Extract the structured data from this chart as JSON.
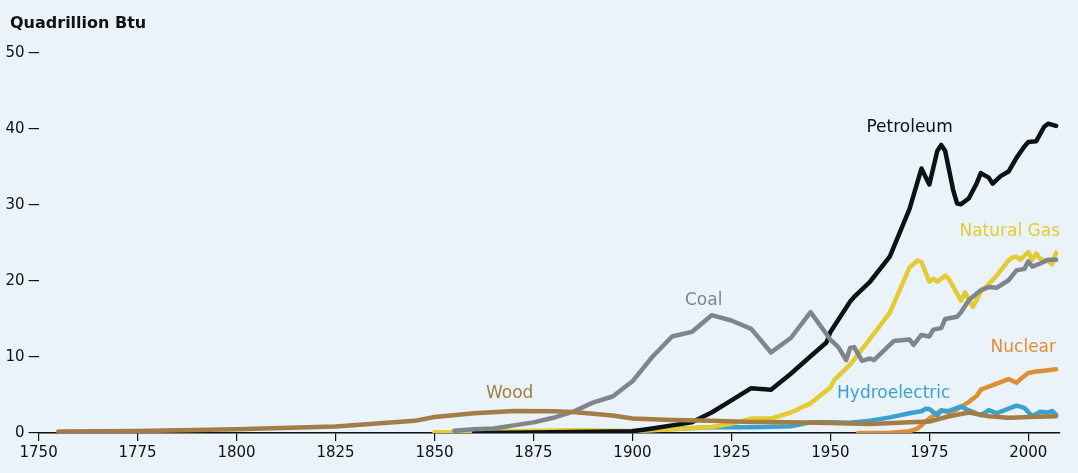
{
  "chart_data": {
    "type": "line",
    "ylabel": "Quadrillion Btu",
    "xlim": [
      1750,
      2008
    ],
    "xticks": [
      1750,
      1775,
      1800,
      1825,
      1850,
      1875,
      1900,
      1925,
      1950,
      1975,
      2000
    ],
    "ylim": [
      0,
      50
    ],
    "yticks": [
      0,
      10,
      20,
      30,
      40,
      50
    ],
    "grid": false,
    "legend": false,
    "marker": "none",
    "line_style": "solid",
    "series": [
      {
        "name": "Wood",
        "color": "#a47c45",
        "x": [
          1755,
          1775,
          1800,
          1825,
          1845,
          1850,
          1860,
          1870,
          1880,
          1885,
          1895,
          1900,
          1910,
          1920,
          1930,
          1940,
          1950,
          1960,
          1970,
          1975,
          1980,
          1985,
          1990,
          1995,
          2000,
          2007
        ],
        "values": [
          0.2,
          0.25,
          0.5,
          0.85,
          1.6,
          2.1,
          2.6,
          2.9,
          2.85,
          2.75,
          2.3,
          1.9,
          1.7,
          1.6,
          1.45,
          1.4,
          1.3,
          1.2,
          1.4,
          1.5,
          2.2,
          2.7,
          2.2,
          2.0,
          2.1,
          2.2
        ]
      },
      {
        "name": "Coal",
        "color": "#7f868b",
        "x": [
          1855,
          1860,
          1865,
          1870,
          1875,
          1880,
          1885,
          1890,
          1895,
          1900,
          1905,
          1910,
          1915,
          1920,
          1925,
          1930,
          1935,
          1940,
          1945,
          1950,
          1952,
          1954,
          1955,
          1956,
          1958,
          1960,
          1961,
          1965,
          1966,
          1970,
          1971,
          1973,
          1975,
          1976,
          1978,
          1979,
          1982,
          1983,
          1985,
          1988,
          1990,
          1992,
          1995,
          1997,
          1999,
          2000,
          2001,
          2003,
          2005,
          2007
        ],
        "values": [
          0.3,
          0.5,
          0.6,
          1.0,
          1.4,
          2.0,
          2.8,
          4.0,
          4.8,
          6.8,
          10.0,
          12.7,
          13.3,
          15.5,
          14.8,
          13.7,
          10.6,
          12.5,
          15.9,
          12.3,
          11.3,
          9.6,
          11.2,
          11.3,
          9.5,
          9.8,
          9.6,
          11.6,
          12.1,
          12.3,
          11.6,
          12.9,
          12.7,
          13.6,
          13.8,
          15.0,
          15.3,
          15.9,
          17.5,
          18.8,
          19.2,
          19.1,
          20.1,
          21.4,
          21.6,
          22.6,
          21.9,
          22.3,
          22.8,
          22.8
        ]
      },
      {
        "name": "Petroleum",
        "color": "#0d1214",
        "x": [
          1860,
          1880,
          1890,
          1900,
          1905,
          1910,
          1915,
          1920,
          1925,
          1930,
          1935,
          1940,
          1945,
          1949,
          1950,
          1952,
          1955,
          1956,
          1960,
          1965,
          1970,
          1973,
          1975,
          1977,
          1978,
          1979,
          1981,
          1982,
          1983,
          1985,
          1987,
          1988,
          1990,
          1991,
          1993,
          1995,
          1997,
          1999,
          2000,
          2002,
          2004,
          2005,
          2007
        ],
        "values": [
          0,
          0.1,
          0.16,
          0.23,
          0.6,
          1.0,
          1.4,
          2.7,
          4.3,
          5.9,
          5.7,
          7.8,
          10.1,
          11.9,
          13.3,
          14.9,
          17.3,
          17.9,
          19.9,
          23.2,
          29.5,
          34.8,
          32.7,
          37.1,
          37.9,
          37.1,
          32.0,
          30.2,
          30.1,
          30.9,
          32.9,
          34.2,
          33.6,
          32.8,
          33.8,
          34.4,
          36.2,
          37.7,
          38.3,
          38.4,
          40.3,
          40.7,
          40.4
        ]
      },
      {
        "name": "Natural Gas",
        "color": "#e3cb33",
        "x": [
          1850,
          1855,
          1885,
          1900,
          1910,
          1920,
          1925,
          1930,
          1935,
          1940,
          1945,
          1950,
          1951,
          1955,
          1960,
          1965,
          1970,
          1972,
          1973,
          1975,
          1976,
          1977,
          1979,
          1980,
          1983,
          1984,
          1986,
          1988,
          1990,
          1992,
          1995,
          1996,
          1997,
          1998,
          2000,
          2001,
          2002,
          2003,
          2005,
          2006,
          2007
        ],
        "values": [
          0.1,
          0.1,
          0.37,
          0.25,
          0.5,
          0.8,
          1.2,
          1.9,
          1.9,
          2.7,
          3.9,
          6.0,
          7.0,
          9.0,
          12.4,
          15.8,
          21.8,
          22.7,
          22.5,
          19.9,
          20.3,
          19.9,
          20.7,
          20.2,
          17.4,
          18.5,
          16.6,
          18.6,
          19.6,
          20.7,
          22.7,
          23.1,
          23.2,
          22.8,
          23.8,
          22.8,
          23.6,
          22.9,
          22.6,
          22.2,
          23.7
        ]
      },
      {
        "name": "Hydroelectric",
        "color": "#3ba2cf",
        "x": [
          1900,
          1910,
          1920,
          1930,
          1940,
          1945,
          1950,
          1955,
          1960,
          1965,
          1970,
          1973,
          1974,
          1975,
          1977,
          1978,
          1980,
          1983,
          1985,
          1988,
          1990,
          1992,
          1995,
          1997,
          1999,
          2001,
          2003,
          2005,
          2006,
          2007
        ],
        "values": [
          0.25,
          0.54,
          0.77,
          0.75,
          0.88,
          1.4,
          1.4,
          1.36,
          1.6,
          2.06,
          2.6,
          2.86,
          3.18,
          3.15,
          2.33,
          2.94,
          2.9,
          3.5,
          2.97,
          2.33,
          3.0,
          2.6,
          3.2,
          3.6,
          3.3,
          2.2,
          2.8,
          2.7,
          2.9,
          2.4
        ]
      },
      {
        "name": "Nuclear",
        "color": "#dd8f35",
        "x": [
          1957,
          1965,
          1970,
          1972,
          1975,
          1978,
          1980,
          1982,
          1985,
          1987,
          1988,
          1990,
          1992,
          1995,
          1997,
          1998,
          2000,
          2002,
          2004,
          2007
        ],
        "values": [
          0,
          0.04,
          0.24,
          0.58,
          1.9,
          3.0,
          2.7,
          3.1,
          4.1,
          4.9,
          5.7,
          6.1,
          6.5,
          7.1,
          6.6,
          7.1,
          7.9,
          8.1,
          8.2,
          8.4
        ]
      }
    ]
  }
}
